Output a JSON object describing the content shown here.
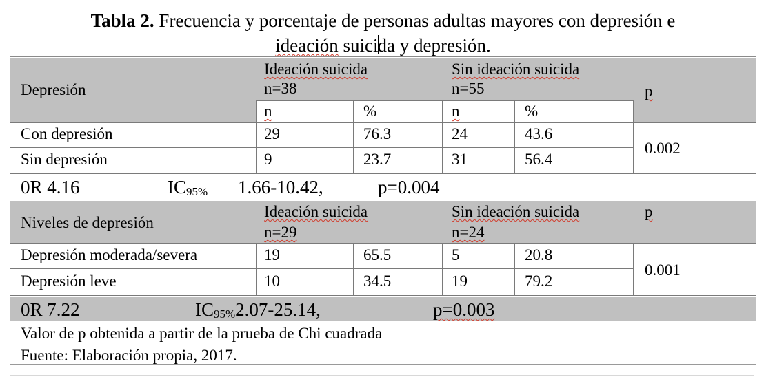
{
  "title": {
    "bold": "Tabla 2.",
    "text_a": "Frecuencia y porcentaje de personas adultas mayores con depresión e",
    "text_b1": "ideación",
    "text_b2": "suici",
    "text_b3": "da y depresión."
  },
  "table1": {
    "row_header": "Depresión",
    "group1_label": "Ideación suicida",
    "group1_n": "n=38",
    "group2_label": "Sin ideación suicida",
    "group2_n": "n=55",
    "p_header": "p",
    "sub_n": "n",
    "sub_pct": "%",
    "rows": [
      {
        "label": "Con depresión",
        "n1": "29",
        "p1": "76.3",
        "n2": "24",
        "p2": "43.6"
      },
      {
        "label": "Sin depresión",
        "n1": "9",
        "p1": "23.7",
        "n2": "31",
        "p2": "56.4"
      }
    ],
    "p_value": "0.002",
    "or_label": "0R 4.16",
    "ic_label": "IC",
    "ic_sub": "95%",
    "ic_range": "1.66-10.42,",
    "or_p": "p=0.004"
  },
  "table2": {
    "row_header": "Niveles de depresión",
    "group1_label": "Ideación suicida",
    "group1_n": "n=29",
    "group2_label": "Sin ideación suicida",
    "group2_n": "n=24",
    "p_header": "p",
    "rows": [
      {
        "label": "Depresión moderada/severa",
        "n1": "19",
        "p1": "65.5",
        "n2": "5",
        "p2": "20.8"
      },
      {
        "label": "Depresión leve",
        "n1": "10",
        "p1": "34.5",
        "n2": "19",
        "p2": "79.2"
      }
    ],
    "p_value": "0.001",
    "or_label": "0R 7.22",
    "ic_label": "IC",
    "ic_sub": "95%",
    "ic_range": "2.07-25.14,",
    "or_p": "p=0.003"
  },
  "notes": {
    "line1": "Valor de p obtenida a partir de la prueba de Chi cuadrada",
    "line2": "Fuente: Elaboración propia, 2017."
  }
}
